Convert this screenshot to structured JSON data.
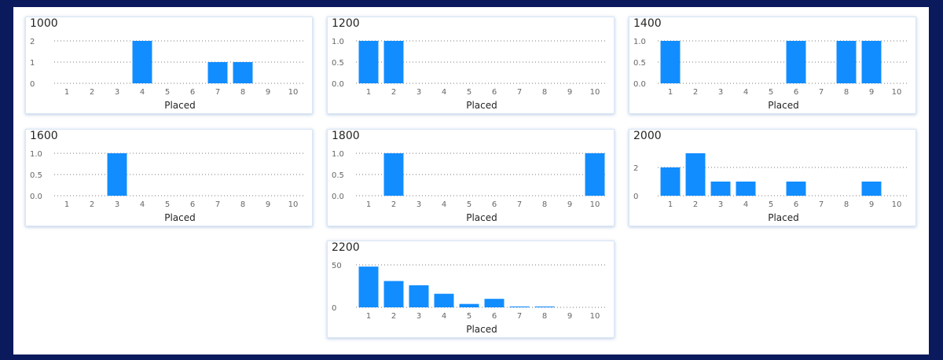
{
  "colors": {
    "bar": "#118dff",
    "background": "#0b1a5c"
  },
  "chart_data": [
    {
      "type": "bar",
      "title": "1000",
      "xlabel": "Placed",
      "ylabel": "",
      "categories": [
        "1",
        "2",
        "3",
        "4",
        "5",
        "6",
        "7",
        "8",
        "9",
        "10"
      ],
      "values": [
        0,
        0,
        0,
        2,
        0,
        0,
        1,
        1,
        0,
        0
      ],
      "ylim": [
        0,
        2
      ],
      "yticks": [
        0,
        1,
        2
      ],
      "ytick_labels": [
        "0",
        "1",
        "2"
      ],
      "grid": true
    },
    {
      "type": "bar",
      "title": "1200",
      "xlabel": "Placed",
      "ylabel": "",
      "categories": [
        "1",
        "2",
        "3",
        "4",
        "5",
        "6",
        "7",
        "8",
        "9",
        "10"
      ],
      "values": [
        1,
        1,
        0,
        0,
        0,
        0,
        0,
        0,
        0,
        0
      ],
      "ylim": [
        0,
        1
      ],
      "yticks": [
        0,
        0.5,
        1
      ],
      "ytick_labels": [
        "0.0",
        "0.5",
        "1.0"
      ],
      "grid": true
    },
    {
      "type": "bar",
      "title": "1400",
      "xlabel": "Placed",
      "ylabel": "",
      "categories": [
        "1",
        "2",
        "3",
        "4",
        "5",
        "6",
        "7",
        "8",
        "9",
        "10"
      ],
      "values": [
        1,
        0,
        0,
        0,
        0,
        1,
        0,
        1,
        1,
        0
      ],
      "ylim": [
        0,
        1
      ],
      "yticks": [
        0,
        0.5,
        1
      ],
      "ytick_labels": [
        "0.0",
        "0.5",
        "1.0"
      ],
      "grid": true
    },
    {
      "type": "bar",
      "title": "1600",
      "xlabel": "Placed",
      "ylabel": "",
      "categories": [
        "1",
        "2",
        "3",
        "4",
        "5",
        "6",
        "7",
        "8",
        "9",
        "10"
      ],
      "values": [
        0,
        0,
        1,
        0,
        0,
        0,
        0,
        0,
        0,
        0
      ],
      "ylim": [
        0,
        1
      ],
      "yticks": [
        0,
        0.5,
        1
      ],
      "ytick_labels": [
        "0.0",
        "0.5",
        "1.0"
      ],
      "grid": true
    },
    {
      "type": "bar",
      "title": "1800",
      "xlabel": "Placed",
      "ylabel": "",
      "categories": [
        "1",
        "2",
        "3",
        "4",
        "5",
        "6",
        "7",
        "8",
        "9",
        "10"
      ],
      "values": [
        0,
        1,
        0,
        0,
        0,
        0,
        0,
        0,
        0,
        1
      ],
      "ylim": [
        0,
        1
      ],
      "yticks": [
        0,
        0.5,
        1
      ],
      "ytick_labels": [
        "0.0",
        "0.5",
        "1.0"
      ],
      "grid": true
    },
    {
      "type": "bar",
      "title": "2000",
      "xlabel": "Placed",
      "ylabel": "",
      "categories": [
        "1",
        "2",
        "3",
        "4",
        "5",
        "6",
        "7",
        "8",
        "9",
        "10"
      ],
      "values": [
        2,
        3,
        1,
        1,
        0,
        1,
        0,
        0,
        1,
        0
      ],
      "ylim": [
        0,
        3
      ],
      "yticks": [
        0,
        2
      ],
      "ytick_labels": [
        "0",
        "2"
      ],
      "grid": true
    },
    {
      "type": "bar",
      "title": "2200",
      "xlabel": "Placed",
      "ylabel": "",
      "categories": [
        "1",
        "2",
        "3",
        "4",
        "5",
        "6",
        "7",
        "8",
        "9",
        "10"
      ],
      "values": [
        48,
        31,
        26,
        16,
        4,
        10,
        1,
        1,
        0,
        0
      ],
      "ylim": [
        0,
        50
      ],
      "yticks": [
        0,
        50
      ],
      "ytick_labels": [
        "0",
        "50"
      ],
      "grid": true
    }
  ]
}
